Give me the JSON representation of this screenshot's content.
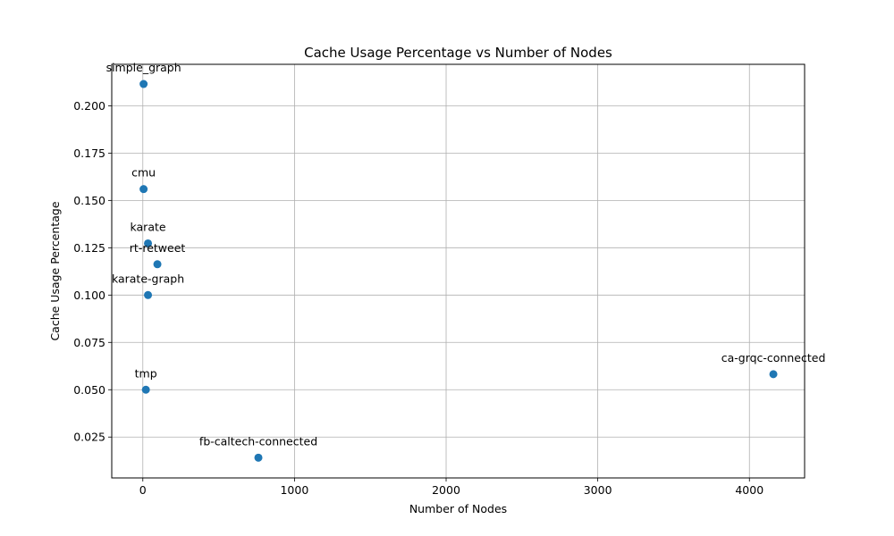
{
  "chart_data": {
    "type": "scatter",
    "title": "Cache Usage Percentage vs Number of Nodes",
    "xlabel": "Number of Nodes",
    "ylabel": "Cache Usage Percentage",
    "xlim": [
      -205,
      4364
    ],
    "ylim": [
      0.0034,
      0.2219
    ],
    "xticks": [
      0,
      1000,
      2000,
      3000,
      4000
    ],
    "xtick_labels": [
      "0",
      "1000",
      "2000",
      "3000",
      "4000"
    ],
    "yticks": [
      0.025,
      0.05,
      0.075,
      0.1,
      0.125,
      0.15,
      0.175,
      0.2
    ],
    "ytick_labels": [
      "0.025",
      "0.050",
      "0.075",
      "0.100",
      "0.125",
      "0.150",
      "0.175",
      "0.200"
    ],
    "grid": true,
    "point_color": "#1f77b4",
    "points": [
      {
        "label": "simple_graph",
        "x": 5,
        "y": 0.2115
      },
      {
        "label": "cmu",
        "x": 5,
        "y": 0.156
      },
      {
        "label": "karate",
        "x": 34,
        "y": 0.1273
      },
      {
        "label": "rt-retweet",
        "x": 96,
        "y": 0.1163
      },
      {
        "label": "karate-graph",
        "x": 34,
        "y": 0.1
      },
      {
        "label": "tmp",
        "x": 20,
        "y": 0.05
      },
      {
        "label": "ca-grqc-connected",
        "x": 4158,
        "y": 0.0582
      },
      {
        "label": "fb-caltech-connected",
        "x": 762,
        "y": 0.0141
      }
    ]
  }
}
